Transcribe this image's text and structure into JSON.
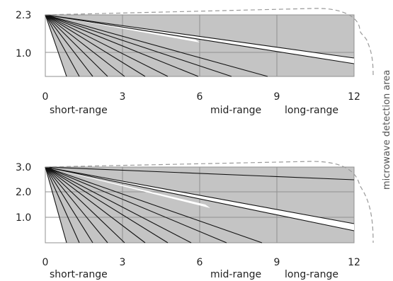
{
  "side_label": "microwave detection area",
  "diagrams": [
    {
      "name": "upper",
      "y_ticks": [
        "2.3",
        "1.0"
      ],
      "x_ticks": [
        "0",
        "3",
        "6",
        "9",
        "12"
      ],
      "ranges": [
        "short-range",
        "mid-range",
        "long-range"
      ]
    },
    {
      "name": "lower",
      "y_ticks": [
        "3.0",
        "2.0",
        "1.0"
      ],
      "x_ticks": [
        "0",
        "3",
        "6",
        "9",
        "12"
      ],
      "ranges": [
        "short-range",
        "mid-range",
        "long-range"
      ]
    }
  ],
  "colors": {
    "zone_fill": "#c4c4c4",
    "grid": "#909090",
    "ray": "#111111",
    "dashed_outline": "#9a9a9a"
  }
}
